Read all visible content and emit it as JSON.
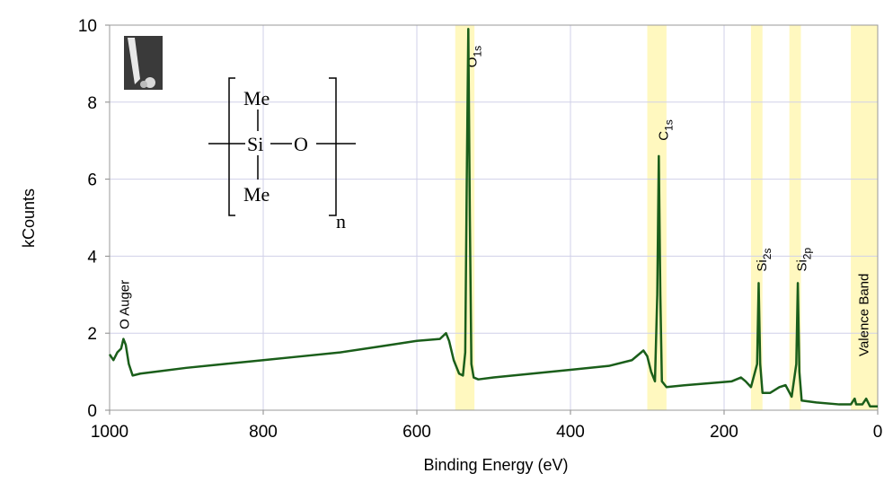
{
  "chart_data": {
    "type": "line",
    "xlabel": "Binding Energy (eV)",
    "ylabel": "kCounts",
    "xlim": [
      1000,
      0
    ],
    "ylim": [
      0,
      10
    ],
    "xticks": [
      1000,
      800,
      600,
      400,
      200,
      0
    ],
    "yticks": [
      0,
      2,
      4,
      6,
      8,
      10
    ],
    "grid": true,
    "highlight_ranges": [
      [
        550,
        525
      ],
      [
        300,
        275
      ],
      [
        165,
        150
      ],
      [
        115,
        100
      ],
      [
        35,
        0
      ]
    ],
    "highlight_color": "#fff8bf",
    "x": [
      1000,
      995,
      990,
      985,
      982,
      979,
      975,
      970,
      960,
      940,
      900,
      850,
      800,
      750,
      700,
      650,
      600,
      570,
      562,
      558,
      552,
      545,
      540,
      537,
      535,
      533,
      531,
      529,
      526,
      520,
      500,
      450,
      400,
      350,
      320,
      305,
      300,
      295,
      290,
      287,
      285,
      283,
      281,
      275,
      250,
      220,
      190,
      178,
      172,
      165,
      157,
      155,
      153,
      150,
      140,
      128,
      120,
      112,
      106,
      104,
      102,
      99,
      80,
      50,
      35,
      30,
      28,
      20,
      15,
      10,
      5,
      0
    ],
    "series": [
      {
        "color": "#1a5e1a",
        "values": [
          1.45,
          1.3,
          1.5,
          1.6,
          1.85,
          1.7,
          1.2,
          0.9,
          0.95,
          1.0,
          1.1,
          1.2,
          1.3,
          1.4,
          1.5,
          1.65,
          1.8,
          1.85,
          2.0,
          1.8,
          1.3,
          0.95,
          0.9,
          1.5,
          6.0,
          9.9,
          5.0,
          1.2,
          0.85,
          0.8,
          0.85,
          0.95,
          1.05,
          1.15,
          1.3,
          1.55,
          1.4,
          1.0,
          0.75,
          3.0,
          6.6,
          3.0,
          0.75,
          0.6,
          0.65,
          0.7,
          0.75,
          0.85,
          0.75,
          0.6,
          1.2,
          3.3,
          1.2,
          0.45,
          0.45,
          0.6,
          0.65,
          0.35,
          1.2,
          3.3,
          1.0,
          0.25,
          0.2,
          0.15,
          0.15,
          0.3,
          0.15,
          0.15,
          0.3,
          0.1,
          0.1,
          0.1
        ]
      }
    ],
    "annotations": [
      {
        "main": "O Auger",
        "x": 975,
        "y": 2.1
      },
      {
        "main": "O",
        "sub": "1s",
        "x": 522,
        "y": 8.9
      },
      {
        "main": "C",
        "sub": "1s",
        "x": 273,
        "y": 7.0
      },
      {
        "main": "Si",
        "sub": "2s",
        "x": 145,
        "y": 3.6
      },
      {
        "main": "Si",
        "sub": "2p",
        "x": 93,
        "y": 3.6
      },
      {
        "main": "Valence Band",
        "x": 12,
        "y": 1.4
      }
    ]
  },
  "structure": {
    "me_top": "Me",
    "si": "Si",
    "o": "O",
    "me_bottom": "Me",
    "n": "n"
  }
}
